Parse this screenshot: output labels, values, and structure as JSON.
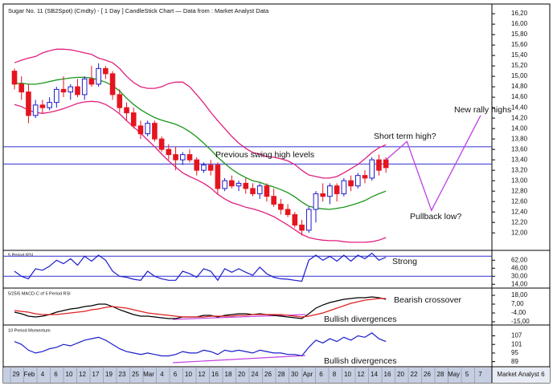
{
  "title": "Sugar No. 11 (SB2Spot) (Cmdty) - [ 1 Day ] CandleStick Chart — Data from : Market Analyst Data",
  "footer": "Market Analyst 6",
  "x_axis_labels": [
    "29",
    "Feb",
    "4",
    "6",
    "10",
    "12",
    "17",
    "19",
    "23",
    "25",
    "Mar",
    "4",
    "6",
    "10",
    "12",
    "16",
    "18",
    "20",
    "24",
    "26",
    "28",
    "30",
    "Apr",
    "6",
    "8",
    "10",
    "12",
    "14",
    "16",
    "20",
    "22",
    "26",
    "28",
    "May",
    "5",
    "7"
  ],
  "chart_data": [
    {
      "type": "candlestick",
      "up_color": "#1c1ccc",
      "down_color": "#e5141e",
      "open": [
        15.1,
        14.85,
        14.7,
        14.25,
        14.45,
        14.4,
        14.5,
        14.75,
        14.7,
        14.8,
        14.65,
        14.95,
        14.85,
        15.15,
        15.05,
        14.65,
        14.4,
        14.3,
        14.05,
        13.9,
        14.1,
        13.8,
        13.6,
        13.5,
        13.4,
        13.5,
        13.4,
        13.2,
        13.3,
        13.3,
        12.85,
        13.0,
        12.9,
        12.95,
        12.85,
        12.75,
        12.9,
        12.7,
        12.55,
        12.45,
        12.35,
        12.15,
        12.05,
        12.45,
        12.75,
        12.7,
        12.9,
        12.75,
        13.0,
        12.9,
        13.1,
        13.05,
        13.4,
        13.4
      ],
      "high": [
        15.15,
        15.0,
        14.85,
        14.55,
        14.55,
        14.6,
        14.8,
        15.0,
        14.85,
        14.95,
        15.0,
        15.2,
        15.25,
        15.2,
        15.1,
        14.75,
        14.5,
        14.4,
        14.15,
        14.15,
        14.15,
        13.85,
        13.7,
        13.65,
        13.55,
        13.6,
        13.45,
        13.35,
        13.4,
        13.35,
        13.05,
        13.1,
        13.0,
        13.05,
        12.95,
        12.95,
        12.95,
        12.85,
        12.65,
        12.55,
        12.4,
        12.25,
        12.5,
        12.8,
        12.95,
        12.95,
        12.95,
        13.05,
        13.1,
        13.15,
        13.2,
        13.45,
        13.5,
        13.45
      ],
      "low": [
        14.75,
        14.55,
        14.1,
        14.2,
        14.3,
        14.35,
        14.4,
        14.6,
        14.55,
        14.6,
        14.55,
        14.8,
        14.8,
        14.95,
        14.55,
        14.3,
        14.15,
        14.0,
        13.8,
        13.85,
        13.75,
        13.55,
        13.4,
        13.2,
        13.3,
        13.35,
        13.1,
        13.15,
        13.1,
        12.75,
        12.8,
        12.85,
        12.8,
        12.75,
        12.7,
        12.65,
        12.6,
        12.5,
        12.35,
        12.3,
        12.1,
        11.95,
        12.0,
        12.2,
        12.6,
        12.55,
        12.6,
        12.7,
        12.8,
        12.85,
        12.95,
        13.0,
        13.1,
        13.15
      ],
      "close": [
        14.85,
        14.7,
        14.25,
        14.45,
        14.4,
        14.5,
        14.75,
        14.7,
        14.8,
        14.65,
        14.95,
        14.85,
        15.15,
        15.05,
        14.65,
        14.4,
        14.3,
        14.05,
        13.9,
        14.1,
        13.8,
        13.6,
        13.5,
        13.4,
        13.5,
        13.4,
        13.2,
        13.3,
        13.2,
        12.85,
        13.0,
        12.9,
        12.95,
        12.85,
        12.75,
        12.9,
        12.7,
        12.55,
        12.45,
        12.35,
        12.15,
        12.05,
        12.45,
        12.75,
        12.7,
        12.9,
        12.75,
        13.0,
        12.9,
        13.1,
        13.05,
        13.4,
        13.2,
        13.25
      ],
      "bands": {
        "color": "#e0207f",
        "upper": [
          15.26,
          15.31,
          15.35,
          15.38,
          15.45,
          15.49,
          15.52,
          15.52,
          15.51,
          15.48,
          15.45,
          15.42,
          15.35,
          15.31,
          15.26,
          15.15,
          15.0,
          14.88,
          14.8,
          14.77,
          14.77,
          14.8,
          14.86,
          14.89,
          14.89,
          14.8,
          14.65,
          14.49,
          14.31,
          14.15,
          14.0,
          13.85,
          13.72,
          13.62,
          13.54,
          13.51,
          13.46,
          13.45,
          13.42,
          13.38,
          13.31,
          13.2,
          13.11,
          13.08,
          13.05,
          13.05,
          13.08,
          13.15,
          13.23,
          13.31,
          13.42,
          13.54,
          13.63,
          13.69
        ],
        "lower": [
          14.46,
          14.42,
          14.35,
          14.31,
          14.29,
          14.31,
          14.34,
          14.38,
          14.43,
          14.48,
          14.51,
          14.52,
          14.51,
          14.46,
          14.38,
          14.28,
          14.15,
          14.03,
          13.91,
          13.78,
          13.65,
          13.51,
          13.38,
          13.26,
          13.15,
          13.08,
          13.02,
          12.95,
          12.86,
          12.74,
          12.65,
          12.58,
          12.54,
          12.49,
          12.46,
          12.42,
          12.37,
          12.31,
          12.23,
          12.15,
          12.06,
          11.97,
          11.91,
          11.88,
          11.86,
          11.85,
          11.85,
          11.83,
          11.82,
          11.82,
          11.82,
          11.83,
          11.86,
          11.91
        ]
      },
      "ma": {
        "color": "#1a961a",
        "values": [
          14.86,
          14.87,
          14.85,
          14.85,
          14.87,
          14.9,
          14.93,
          14.95,
          14.97,
          14.98,
          14.98,
          14.97,
          14.93,
          14.89,
          14.82,
          14.72,
          14.58,
          14.46,
          14.36,
          14.28,
          14.21,
          14.16,
          14.12,
          14.08,
          14.02,
          13.94,
          13.84,
          13.72,
          13.59,
          13.45,
          13.33,
          13.22,
          13.13,
          13.06,
          13.0,
          12.97,
          12.92,
          12.88,
          12.83,
          12.77,
          12.69,
          12.59,
          12.51,
          12.48,
          12.46,
          12.45,
          12.47,
          12.49,
          12.53,
          12.57,
          12.62,
          12.69,
          12.75,
          12.8
        ]
      },
      "levels": [
        13.65,
        13.32
      ],
      "level_color": "#3030d0",
      "projection": {
        "color": "#c040e0",
        "x": [
          53,
          56,
          59.5,
          66.5
        ],
        "values": [
          13.4,
          13.75,
          12.43,
          14.25
        ]
      },
      "annotations": [
        "Previous swing high levels",
        "Short term high?",
        "Pullback low?",
        "New rally highs"
      ],
      "ylim": [
        11.68,
        16.34
      ],
      "yticks": [
        {
          "value": 16.2,
          "label": "16,20"
        },
        {
          "value": 16.0,
          "label": "16,00"
        },
        {
          "value": 15.8,
          "label": "15,80"
        },
        {
          "value": 15.6,
          "label": "15,60"
        },
        {
          "value": 15.4,
          "label": "15,40"
        },
        {
          "value": 15.2,
          "label": "15,20"
        },
        {
          "value": 15.0,
          "label": "15,00"
        },
        {
          "value": 14.8,
          "label": "14,80"
        },
        {
          "value": 14.6,
          "label": "14,60"
        },
        {
          "value": 14.4,
          "label": "14,40"
        },
        {
          "value": 14.2,
          "label": "14,20"
        },
        {
          "value": 14.0,
          "label": "14,00"
        },
        {
          "value": 13.8,
          "label": "13,80"
        },
        {
          "value": 13.6,
          "label": "13,60"
        },
        {
          "value": 13.4,
          "label": "13,40"
        },
        {
          "value": 13.2,
          "label": "13,20"
        },
        {
          "value": 13.0,
          "label": "13,00"
        },
        {
          "value": 12.8,
          "label": "12,80"
        },
        {
          "value": 12.6,
          "label": "12,60"
        },
        {
          "value": 12.4,
          "label": "12,40"
        },
        {
          "value": 12.2,
          "label": "12,20"
        },
        {
          "value": 12.0,
          "label": "12,00"
        }
      ]
    },
    {
      "type": "line",
      "title": "5 Period RSI",
      "color": "#1c1ccc",
      "values": [
        40,
        30,
        25,
        45,
        42,
        50,
        62,
        55,
        65,
        52,
        70,
        60,
        72,
        62,
        40,
        30,
        28,
        24,
        22,
        40,
        30,
        25,
        22,
        22,
        40,
        35,
        28,
        45,
        40,
        22,
        45,
        38,
        45,
        38,
        32,
        48,
        35,
        28,
        25,
        24,
        22,
        20,
        62,
        72,
        62,
        70,
        60,
        72,
        60,
        72,
        65,
        76,
        62,
        68
      ],
      "levels": [
        70,
        30
      ],
      "level_color": "#3030d0",
      "annotations": [
        "Strong"
      ],
      "ylim": [
        8,
        80
      ],
      "yticks": [
        {
          "value": 62,
          "label": "62,00"
        },
        {
          "value": 46,
          "label": "46,00"
        },
        {
          "value": 30,
          "label": "30,00"
        },
        {
          "value": 14,
          "label": "14,00"
        }
      ]
    },
    {
      "type": "line",
      "title": "5/25/5 MACD-C of 5 Period RSI",
      "series": [
        {
          "color": "#000000",
          "values": [
            -3,
            -5,
            -8,
            -9,
            -8,
            -6,
            -3,
            -1,
            1,
            2,
            4,
            5,
            7,
            7,
            4,
            0,
            -3,
            -6,
            -8,
            -8,
            -9,
            -10,
            -11,
            -11,
            -9,
            -9,
            -9,
            -7,
            -7,
            -9,
            -7,
            -6,
            -5,
            -5,
            -6,
            -5,
            -6,
            -7,
            -8,
            -9,
            -10,
            -11,
            -5,
            2,
            6,
            9,
            11,
            13,
            14,
            15,
            15,
            16,
            15,
            13
          ]
        },
        {
          "color": "#e02020",
          "values": [
            -1,
            -2,
            -3,
            -5,
            -6,
            -6,
            -6,
            -5,
            -4,
            -3,
            -2,
            0,
            1,
            3,
            4,
            3,
            2,
            0,
            -2,
            -4,
            -5,
            -6,
            -7,
            -8,
            -9,
            -9,
            -9,
            -9,
            -8,
            -8,
            -8,
            -8,
            -7,
            -7,
            -6,
            -6,
            -6,
            -6,
            -6,
            -7,
            -8,
            -9,
            -8,
            -6,
            -4,
            -1,
            2,
            5,
            8,
            10,
            12,
            13,
            14,
            14
          ]
        }
      ],
      "annotations": [
        "Bearish crossover",
        "Bullish divergences"
      ],
      "ylim": [
        -18,
        26
      ],
      "yticks": [
        {
          "value": 18,
          "label": "18,00"
        },
        {
          "value": 7,
          "label": "7,00"
        },
        {
          "value": -4,
          "label": "-4,00"
        },
        {
          "value": -15,
          "label": "-15,00"
        }
      ]
    },
    {
      "type": "line",
      "title": "10 Period Momentum",
      "color": "#1c1ccc",
      "values": [
        103,
        101,
        97,
        95,
        96,
        98,
        99,
        101,
        100,
        102,
        104,
        105,
        106,
        104,
        101,
        98,
        96,
        95,
        94,
        95,
        94,
        93,
        93,
        94,
        96,
        95,
        95,
        97,
        96,
        94,
        97,
        96,
        97,
        96,
        95,
        97,
        96,
        95,
        95,
        94,
        94,
        93,
        99,
        104,
        102,
        105,
        103,
        106,
        104,
        107,
        106,
        109,
        105,
        103
      ],
      "annotations": [
        "Bullish divergences"
      ],
      "ylim": [
        86,
        114
      ],
      "yticks": [
        107,
        101,
        95,
        89
      ]
    }
  ]
}
